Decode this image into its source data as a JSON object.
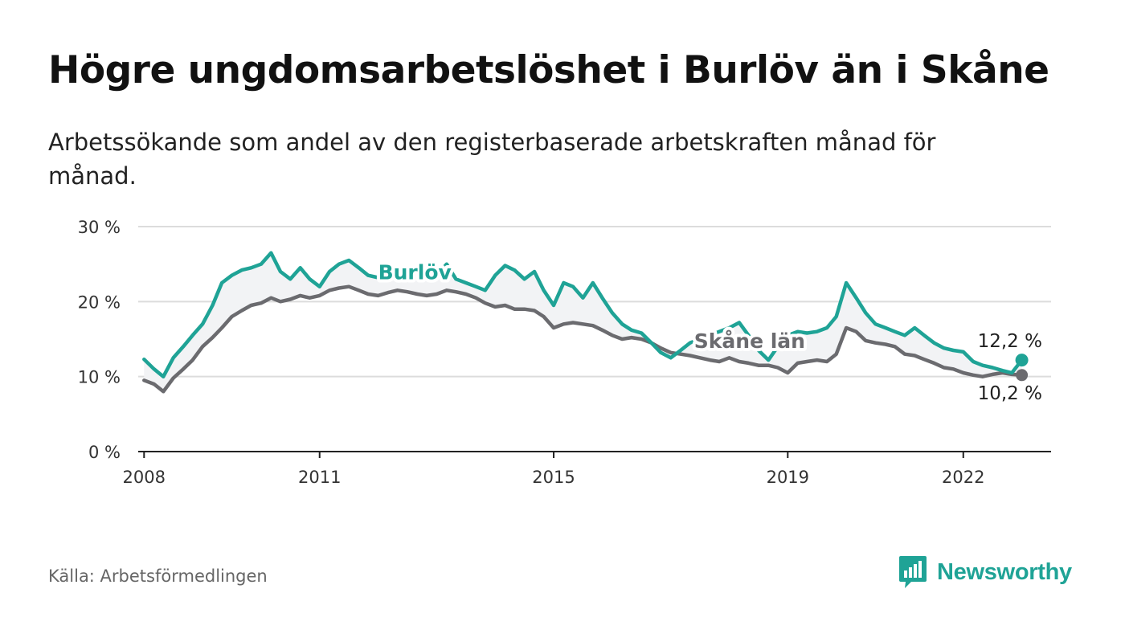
{
  "title": "Högre ungdomsarbetslöshet i Burlöv än i Skåne",
  "subtitle": "Arbetssökande som andel av den registerbaserade arbetskraften månad för månad.",
  "source": "Källa: Arbetsförmedlingen",
  "brand": "Newsworthy",
  "colors": {
    "burlov": "#1fa396",
    "skane": "#6b6b6f",
    "grid": "#dcdcdc",
    "axis": "#222222",
    "fill": "#f2f3f5"
  },
  "chart_data": {
    "type": "line",
    "title": "Högre ungdomsarbetslöshet i Burlöv än i Skåne",
    "ylabel": "",
    "xlabel": "",
    "ylim": [
      0,
      30
    ],
    "xlim": [
      2007.9,
      2023.5
    ],
    "y_ticks": [
      0,
      10,
      20,
      30
    ],
    "y_tick_labels": [
      "0 %",
      "10 %",
      "20 %",
      "30 %"
    ],
    "x_ticks": [
      2008,
      2011,
      2015,
      2019,
      2022
    ],
    "x_tick_labels": [
      "2008",
      "2011",
      "2015",
      "2019",
      "2022"
    ],
    "series": [
      {
        "name": "Burlöv",
        "label": "Burlöv",
        "end_label": "12,2 %",
        "x": [
          2008.0,
          2008.17,
          2008.33,
          2008.5,
          2008.67,
          2008.83,
          2009.0,
          2009.17,
          2009.33,
          2009.5,
          2009.67,
          2009.83,
          2010.0,
          2010.17,
          2010.33,
          2010.5,
          2010.67,
          2010.83,
          2011.0,
          2011.17,
          2011.33,
          2011.5,
          2011.67,
          2011.83,
          2012.0,
          2012.17,
          2012.33,
          2012.5,
          2012.67,
          2012.83,
          2013.0,
          2013.17,
          2013.33,
          2013.5,
          2013.67,
          2013.83,
          2014.0,
          2014.17,
          2014.33,
          2014.5,
          2014.67,
          2014.83,
          2015.0,
          2015.17,
          2015.33,
          2015.5,
          2015.67,
          2015.83,
          2016.0,
          2016.17,
          2016.33,
          2016.5,
          2016.67,
          2016.83,
          2017.0,
          2017.17,
          2017.33,
          2017.5,
          2017.67,
          2017.83,
          2018.0,
          2018.17,
          2018.33,
          2018.5,
          2018.67,
          2018.83,
          2019.0,
          2019.17,
          2019.33,
          2019.5,
          2019.67,
          2019.83,
          2020.0,
          2020.17,
          2020.33,
          2020.5,
          2020.67,
          2020.83,
          2021.0,
          2021.17,
          2021.33,
          2021.5,
          2021.67,
          2021.83,
          2022.0,
          2022.17,
          2022.33,
          2022.5,
          2022.67,
          2022.83,
          2023.0
        ],
        "values": [
          12.3,
          11.0,
          10.0,
          12.5,
          14.0,
          15.5,
          17.0,
          19.5,
          22.5,
          23.5,
          24.2,
          24.5,
          25.0,
          26.5,
          24.0,
          23.0,
          24.5,
          23.0,
          22.0,
          24.0,
          25.0,
          25.5,
          24.5,
          23.5,
          23.2,
          23.6,
          24.0,
          24.5,
          24.0,
          23.2,
          23.5,
          25.0,
          23.0,
          22.5,
          22.0,
          21.5,
          23.5,
          24.8,
          24.2,
          23.0,
          24.0,
          21.5,
          19.5,
          22.5,
          22.0,
          20.5,
          22.5,
          20.5,
          18.5,
          17.0,
          16.2,
          15.8,
          14.5,
          13.2,
          12.5,
          13.5,
          14.5,
          15.0,
          15.5,
          16.0,
          16.5,
          17.2,
          15.5,
          13.5,
          12.2,
          14.0,
          15.5,
          16.0,
          15.8,
          16.0,
          16.5,
          18.0,
          22.5,
          20.5,
          18.5,
          17.0,
          16.5,
          16.0,
          15.5,
          16.5,
          15.5,
          14.5,
          13.8,
          13.5,
          13.3,
          12.0,
          11.5,
          11.2,
          10.8,
          10.5,
          12.2
        ]
      },
      {
        "name": "Skåne län",
        "label": "Skåne län",
        "end_label": "10,2 %",
        "x": [
          2008.0,
          2008.17,
          2008.33,
          2008.5,
          2008.67,
          2008.83,
          2009.0,
          2009.17,
          2009.33,
          2009.5,
          2009.67,
          2009.83,
          2010.0,
          2010.17,
          2010.33,
          2010.5,
          2010.67,
          2010.83,
          2011.0,
          2011.17,
          2011.33,
          2011.5,
          2011.67,
          2011.83,
          2012.0,
          2012.17,
          2012.33,
          2012.5,
          2012.67,
          2012.83,
          2013.0,
          2013.17,
          2013.33,
          2013.5,
          2013.67,
          2013.83,
          2014.0,
          2014.17,
          2014.33,
          2014.5,
          2014.67,
          2014.83,
          2015.0,
          2015.17,
          2015.33,
          2015.5,
          2015.67,
          2015.83,
          2016.0,
          2016.17,
          2016.33,
          2016.5,
          2016.67,
          2016.83,
          2017.0,
          2017.17,
          2017.33,
          2017.5,
          2017.67,
          2017.83,
          2018.0,
          2018.17,
          2018.33,
          2018.5,
          2018.67,
          2018.83,
          2019.0,
          2019.17,
          2019.33,
          2019.5,
          2019.67,
          2019.83,
          2020.0,
          2020.17,
          2020.33,
          2020.5,
          2020.67,
          2020.83,
          2021.0,
          2021.17,
          2021.33,
          2021.5,
          2021.67,
          2021.83,
          2022.0,
          2022.17,
          2022.33,
          2022.5,
          2022.67,
          2022.83,
          2023.0
        ],
        "values": [
          9.5,
          9.0,
          8.0,
          9.8,
          11.0,
          12.2,
          14.0,
          15.2,
          16.5,
          18.0,
          18.8,
          19.5,
          19.8,
          20.5,
          20.0,
          20.3,
          20.8,
          20.5,
          20.8,
          21.5,
          21.8,
          22.0,
          21.5,
          21.0,
          20.8,
          21.2,
          21.5,
          21.3,
          21.0,
          20.8,
          21.0,
          21.5,
          21.3,
          21.0,
          20.5,
          19.8,
          19.3,
          19.5,
          19.0,
          19.0,
          18.8,
          18.0,
          16.5,
          17.0,
          17.2,
          17.0,
          16.8,
          16.2,
          15.5,
          15.0,
          15.2,
          15.0,
          14.5,
          13.8,
          13.2,
          13.0,
          12.8,
          12.5,
          12.2,
          12.0,
          12.5,
          12.0,
          11.8,
          11.5,
          11.5,
          11.2,
          10.5,
          11.8,
          12.0,
          12.2,
          12.0,
          13.0,
          16.5,
          16.0,
          14.8,
          14.5,
          14.3,
          14.0,
          13.0,
          12.8,
          12.3,
          11.8,
          11.2,
          11.0,
          10.5,
          10.2,
          10.0,
          10.3,
          10.5,
          10.3,
          10.2
        ]
      }
    ],
    "annotations": [
      {
        "text": "Burlöv",
        "series": "Burlöv"
      },
      {
        "text": "Skåne län",
        "series": "Skåne län"
      }
    ]
  }
}
